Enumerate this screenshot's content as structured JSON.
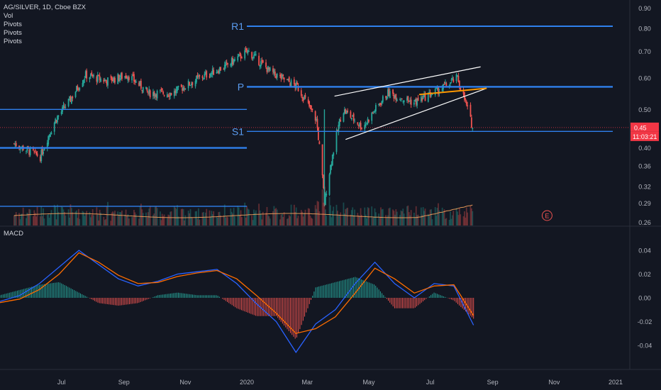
{
  "header": {
    "symbol": "AG/SILVER, 1D, Cboe BZX",
    "indicators": [
      "Vol",
      "Pivots",
      "Pivots",
      "Pivots"
    ]
  },
  "macd_panel": {
    "title": "MACD"
  },
  "price_axis": {
    "ticks": [
      "0.90",
      "0.80",
      "0.70",
      "0.60",
      "0.50",
      "0.40",
      "0.36",
      "0.32",
      "0.29",
      "0.26"
    ],
    "current_price": "0.45",
    "countdown": "11:03:21"
  },
  "macd_axis": {
    "ticks": [
      "0.04",
      "0.02",
      "0.00",
      "-0.02",
      "-0.04"
    ]
  },
  "time_axis": {
    "ticks": [
      "Jul",
      "Sep",
      "Nov",
      "2020",
      "Mar",
      "May",
      "Jul",
      "Sep",
      "Nov",
      "2021"
    ]
  },
  "pivot_labels": [
    "R1",
    "P",
    "S1"
  ],
  "earnings_marker": "E",
  "colors": {
    "background": "#131722",
    "up": "#26a69a",
    "down": "#ef5350",
    "pivot": "#2f80ed",
    "pivot_label": "#5b9cf0",
    "macd_line": "#2962ff",
    "signal_line": "#ff6d00",
    "wedge": "#ffffff",
    "orange_level": "#ff9800",
    "price_tag": "#f23645"
  },
  "chart_data": [
    {
      "type": "candlestick",
      "title": "AG/SILVER, 1D, Cboe BZX",
      "x_range": [
        "2019-05",
        "2021-01"
      ],
      "y_scale": "log",
      "ylim": [
        0.255,
        0.92
      ],
      "last_price": 0.45,
      "series_summary": [
        {
          "date": "2019-05-15",
          "close": 0.41
        },
        {
          "date": "2019-06-10",
          "close": 0.38
        },
        {
          "date": "2019-06-25",
          "close": 0.47
        },
        {
          "date": "2019-07-10",
          "close": 0.53
        },
        {
          "date": "2019-07-25",
          "close": 0.61
        },
        {
          "date": "2019-08-15",
          "close": 0.59
        },
        {
          "date": "2019-09-05",
          "close": 0.61
        },
        {
          "date": "2019-09-25",
          "close": 0.55
        },
        {
          "date": "2019-10-20",
          "close": 0.55
        },
        {
          "date": "2019-11-15",
          "close": 0.6
        },
        {
          "date": "2019-12-10",
          "close": 0.64
        },
        {
          "date": "2020-01-02",
          "close": 0.7
        },
        {
          "date": "2020-01-25",
          "close": 0.62
        },
        {
          "date": "2020-02-20",
          "close": 0.57
        },
        {
          "date": "2020-03-10",
          "close": 0.47
        },
        {
          "date": "2020-03-18",
          "close": 0.29
        },
        {
          "date": "2020-04-05",
          "close": 0.5
        },
        {
          "date": "2020-04-25",
          "close": 0.45
        },
        {
          "date": "2020-05-20",
          "close": 0.55
        },
        {
          "date": "2020-06-15",
          "close": 0.52
        },
        {
          "date": "2020-07-10",
          "close": 0.56
        },
        {
          "date": "2020-07-28",
          "close": 0.6
        },
        {
          "date": "2020-08-12",
          "close": 0.45
        }
      ],
      "pivot_levels": [
        {
          "label": "R1",
          "value": 0.81
        },
        {
          "label": "P",
          "value": 0.57
        },
        {
          "label": "S1",
          "value": 0.44
        },
        {
          "label": "",
          "value": 0.5
        },
        {
          "label": "",
          "value": 0.4
        },
        {
          "label": "",
          "value": 0.285
        }
      ],
      "grid": false,
      "legend": "top-left"
    },
    {
      "type": "line",
      "title": "MACD",
      "ylim": [
        -0.055,
        0.055
      ],
      "series": [
        {
          "name": "MACD",
          "values": [
            -0.003,
            0.002,
            0.012,
            0.026,
            0.04,
            0.028,
            0.016,
            0.01,
            0.014,
            0.02,
            0.022,
            0.024,
            0.012,
            -0.005,
            -0.02,
            -0.046,
            -0.022,
            -0.01,
            0.012,
            0.03,
            0.012,
            0.0,
            0.012,
            0.01,
            -0.023
          ]
        },
        {
          "name": "Signal",
          "values": [
            -0.004,
            -0.001,
            0.007,
            0.02,
            0.038,
            0.03,
            0.019,
            0.012,
            0.013,
            0.018,
            0.021,
            0.023,
            0.016,
            0.002,
            -0.013,
            -0.03,
            -0.026,
            -0.016,
            0.004,
            0.025,
            0.016,
            0.004,
            0.01,
            0.011,
            -0.015
          ]
        }
      ]
    }
  ]
}
